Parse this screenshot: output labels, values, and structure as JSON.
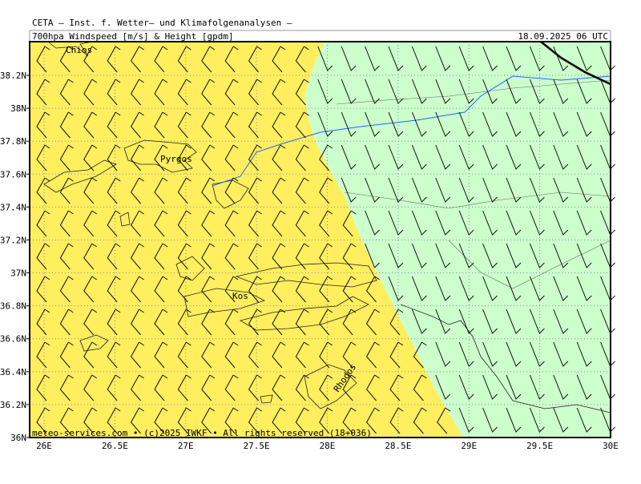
{
  "header": {
    "source": "CETA — Inst. f. Wetter— und Klimafolgenanalysen —",
    "title": "700hpa_Windspeed_[m/s]_&_Height_[gpdm]",
    "date": "18.09.2025 06 UTC"
  },
  "x_axis": {
    "ticks": [
      {
        "value": 26,
        "label": "26E"
      },
      {
        "value": 26.5,
        "label": "26.5E"
      },
      {
        "value": 27,
        "label": "27E"
      },
      {
        "value": 27.5,
        "label": "27.5E"
      },
      {
        "value": 28,
        "label": "28E"
      },
      {
        "value": 28.5,
        "label": "28.5E"
      },
      {
        "value": 29,
        "label": "29E"
      },
      {
        "value": 29.5,
        "label": "29.5E"
      },
      {
        "value": 30,
        "label": "30E"
      }
    ]
  },
  "y_axis": {
    "ticks": [
      {
        "value": 36,
        "label": "36N"
      },
      {
        "value": 36.2,
        "label": "36.2N"
      },
      {
        "value": 36.4,
        "label": "36.4N"
      },
      {
        "value": 36.6,
        "label": "36.6N"
      },
      {
        "value": 36.8,
        "label": "36.8N"
      },
      {
        "value": 37,
        "label": "37N"
      },
      {
        "value": 37.2,
        "label": "37.2N"
      },
      {
        "value": 37.4,
        "label": "37.4N"
      },
      {
        "value": 37.6,
        "label": "37.6N"
      },
      {
        "value": 37.8,
        "label": "37.8N"
      },
      {
        "value": 38,
        "label": "38N"
      },
      {
        "value": 38.2,
        "label": "38.2N"
      }
    ]
  },
  "places": [
    "Chios",
    "Pyrgos",
    "Kos",
    "Rhodos"
  ],
  "footer": "meteo-services.com • (c)2025 IWKF • All rights reserved (18+036)"
}
